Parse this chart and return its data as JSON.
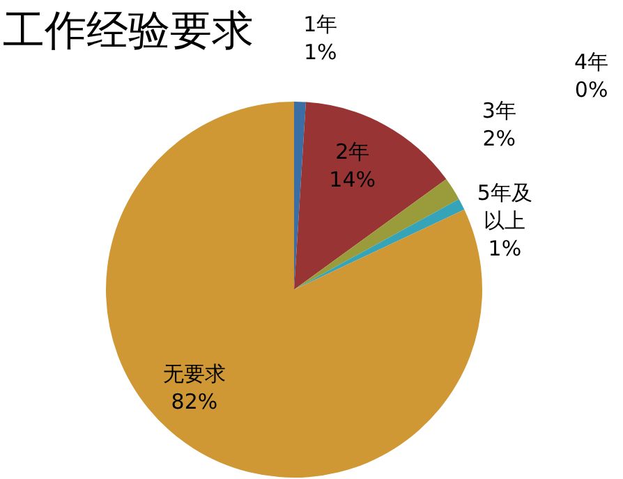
{
  "chart_data": {
    "type": "pie",
    "title": "工作经验要求",
    "categories": [
      "1年",
      "2年",
      "3年",
      "4年",
      "5年及以上",
      "无要求"
    ],
    "values": [
      1,
      14,
      2,
      0,
      1,
      82
    ],
    "colors": [
      "#3a6ea5",
      "#983434",
      "#9a9b3a",
      "#7b6aa8",
      "#35a3b8",
      "#cf9834"
    ],
    "value_labels": [
      "1%",
      "14%",
      "2%",
      "0%",
      "1%",
      "82%"
    ],
    "legend": false
  }
}
